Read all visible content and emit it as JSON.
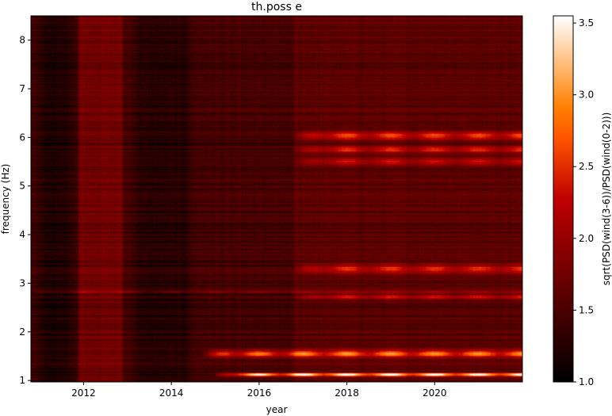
{
  "chart_data": {
    "type": "heatmap",
    "title": "th.poss e",
    "xlabel": "year",
    "ylabel": "frequency (Hz)",
    "colorbar_label": "sqrt(PSD(wind(3-6))/PSD(wind(0-2)))",
    "colormap": "gist_heat",
    "xlim": [
      2010.8,
      2022.0
    ],
    "ylim": [
      0.97,
      8.5
    ],
    "clim": [
      1.0,
      3.55
    ],
    "x_ticks": [
      2012,
      2014,
      2016,
      2018,
      2020
    ],
    "x_tick_labels": [
      "2012",
      "2014",
      "2016",
      "2018",
      "2020"
    ],
    "y_ticks": [
      1,
      2,
      3,
      4,
      5,
      6,
      7,
      8
    ],
    "y_tick_labels": [
      "1",
      "2",
      "3",
      "4",
      "5",
      "6",
      "7",
      "8"
    ],
    "colorbar_ticks": [
      1.0,
      1.5,
      2.0,
      2.5,
      3.0,
      3.5
    ],
    "colorbar_tick_labels": [
      "1.0",
      "1.5",
      "2.0",
      "2.5",
      "3.0",
      "3.5"
    ],
    "grid": false,
    "bands": [
      {
        "freq": 1.12,
        "width": 0.035,
        "strength": 2.3,
        "start": 2015.0,
        "end": 2022.0
      },
      {
        "freq": 1.55,
        "width": 0.07,
        "strength": 1.5,
        "start": 2014.7,
        "end": 2022.0
      },
      {
        "freq": 2.72,
        "width": 0.06,
        "strength": 0.75,
        "start": 2016.8,
        "end": 2022.0
      },
      {
        "freq": 3.3,
        "width": 0.1,
        "strength": 0.85,
        "start": 2016.8,
        "end": 2022.0
      },
      {
        "freq": 5.5,
        "width": 0.08,
        "strength": 0.75,
        "start": 2016.8,
        "end": 2022.0
      },
      {
        "freq": 5.75,
        "width": 0.07,
        "strength": 0.95,
        "start": 2016.8,
        "end": 2022.0
      },
      {
        "freq": 6.03,
        "width": 0.09,
        "strength": 1.05,
        "start": 2016.8,
        "end": 2022.0
      },
      {
        "freq": 2.82,
        "width": 0.02,
        "strength": 0.6,
        "start": 2010.8,
        "end": 2022.0
      }
    ],
    "dark_periods": [
      {
        "start": 2010.8,
        "end": 2011.9,
        "level": 1.2
      },
      {
        "start": 2013.0,
        "end": 2014.6,
        "level": 1.25
      }
    ],
    "bright_period": {
      "start": 2011.9,
      "end": 2012.9,
      "level": 1.75
    }
  }
}
